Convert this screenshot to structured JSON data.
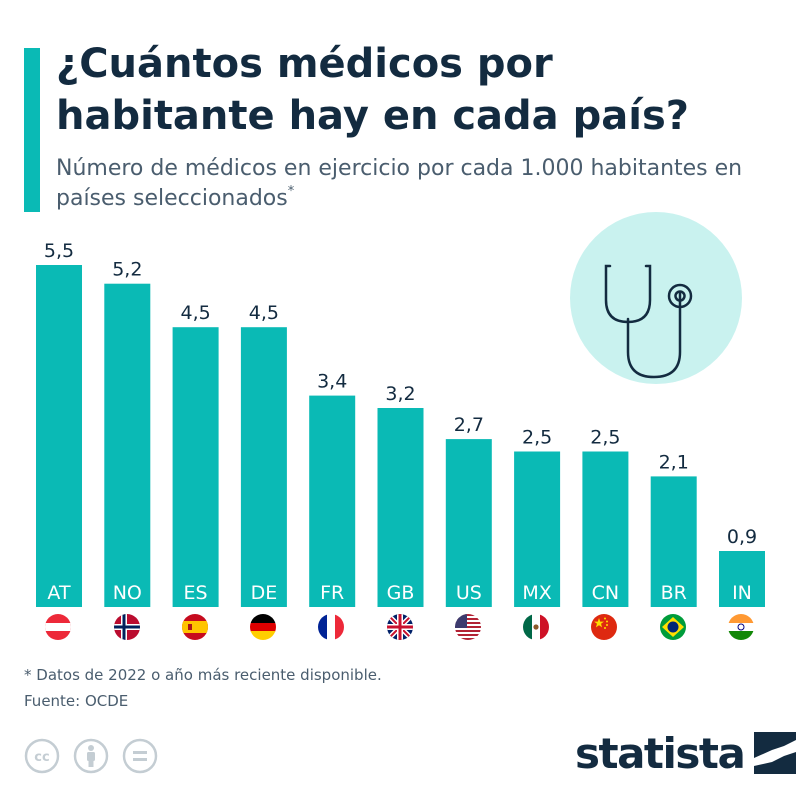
{
  "header": {
    "title": "¿Cuántos médicos por habitante hay en cada país?",
    "subtitle": "Número de médicos en ejercicio por cada 1.000 habitantes en países seleccionados",
    "subtitle_mark": "*"
  },
  "chart_data": {
    "type": "bar",
    "categories": [
      "AT",
      "NO",
      "ES",
      "DE",
      "FR",
      "GB",
      "US",
      "MX",
      "CN",
      "BR",
      "IN"
    ],
    "values": [
      5.5,
      5.2,
      4.5,
      4.5,
      3.4,
      3.2,
      2.7,
      2.5,
      2.5,
      2.1,
      0.9
    ],
    "value_labels": [
      "5,5",
      "5,2",
      "4,5",
      "4,5",
      "3,4",
      "3,2",
      "2,7",
      "2,5",
      "2,5",
      "2,1",
      "0,9"
    ],
    "bar_color": "#0abab5",
    "title": "",
    "xlabel": "",
    "ylabel": "",
    "ylim": [
      0,
      5.5
    ],
    "grid": false,
    "legend": "none"
  },
  "flags": [
    "austria-flag-icon",
    "norway-flag-icon",
    "spain-flag-icon",
    "germany-flag-icon",
    "france-flag-icon",
    "uk-flag-icon",
    "usa-flag-icon",
    "mexico-flag-icon",
    "china-flag-icon",
    "brazil-flag-icon",
    "india-flag-icon"
  ],
  "illustration": {
    "icon": "stethoscope-icon",
    "circle_color": "#c9f2ef"
  },
  "footer": {
    "footnote": "* Datos de 2022 o año más reciente disponible.",
    "source": "Fuente: OCDE",
    "license_icons": [
      "cc-icon",
      "attribution-icon",
      "no-derivatives-icon"
    ],
    "brand": "statista",
    "brand_icon": "statista-logo-icon"
  },
  "colors": {
    "accent": "#0abab5",
    "title": "#132b40",
    "text": "#4a5d6e"
  }
}
